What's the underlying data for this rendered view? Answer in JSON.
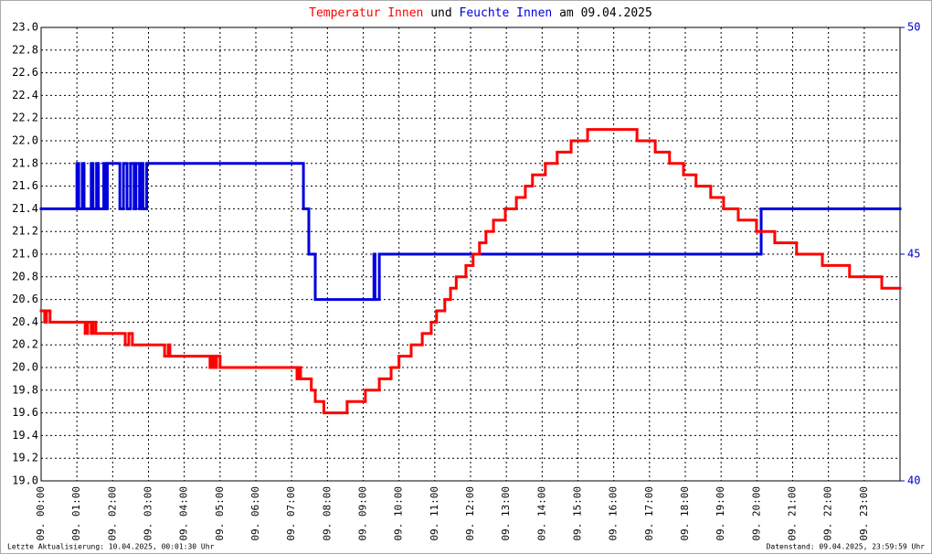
{
  "chart_data": {
    "type": "step-line",
    "title_joiner": "und",
    "title_suffix": "am 09.04.2025",
    "footer_left": "Letzte Aktualisierung: 10.04.2025, 00:01:30 Uhr",
    "footer_right": "Datenstand: 09.04.2025, 23:59:59 Uhr",
    "grid": true,
    "xlim": [
      0,
      24
    ],
    "xticks": [
      {
        "value": 0,
        "label": "09. 00:00"
      },
      {
        "value": 1,
        "label": "09. 01:00"
      },
      {
        "value": 2,
        "label": "09. 02:00"
      },
      {
        "value": 3,
        "label": "09. 03:00"
      },
      {
        "value": 4,
        "label": "09. 04:00"
      },
      {
        "value": 5,
        "label": "09. 05:00"
      },
      {
        "value": 6,
        "label": "09. 06:00"
      },
      {
        "value": 7,
        "label": "09. 07:00"
      },
      {
        "value": 8,
        "label": "09. 08:00"
      },
      {
        "value": 9,
        "label": "09. 09:00"
      },
      {
        "value": 10,
        "label": "09. 10:00"
      },
      {
        "value": 11,
        "label": "09. 11:00"
      },
      {
        "value": 12,
        "label": "09. 12:00"
      },
      {
        "value": 13,
        "label": "09. 13:00"
      },
      {
        "value": 14,
        "label": "09. 14:00"
      },
      {
        "value": 15,
        "label": "09. 15:00"
      },
      {
        "value": 16,
        "label": "09. 16:00"
      },
      {
        "value": 17,
        "label": "09. 17:00"
      },
      {
        "value": 18,
        "label": "09. 18:00"
      },
      {
        "value": 19,
        "label": "09. 19:00"
      },
      {
        "value": 20,
        "label": "09. 20:00"
      },
      {
        "value": 21,
        "label": "09. 21:00"
      },
      {
        "value": 22,
        "label": "09. 22:00"
      },
      {
        "value": 23,
        "label": "09. 23:00"
      }
    ],
    "ylim": [
      19,
      23
    ],
    "yticks": [
      {
        "value": 19,
        "label": "19.0"
      },
      {
        "value": 19.2,
        "label": "19.2"
      },
      {
        "value": 19.4,
        "label": "19.4"
      },
      {
        "value": 19.6,
        "label": "19.6"
      },
      {
        "value": 19.8,
        "label": "19.8"
      },
      {
        "value": 20,
        "label": "20.0"
      },
      {
        "value": 20.2,
        "label": "20.2"
      },
      {
        "value": 20.4,
        "label": "20.4"
      },
      {
        "value": 20.6,
        "label": "20.6"
      },
      {
        "value": 20.8,
        "label": "20.8"
      },
      {
        "value": 21,
        "label": "21.0"
      },
      {
        "value": 21.2,
        "label": "21.2"
      },
      {
        "value": 21.4,
        "label": "21.4"
      },
      {
        "value": 21.6,
        "label": "21.6"
      },
      {
        "value": 21.8,
        "label": "21.8"
      },
      {
        "value": 22,
        "label": "22.0"
      },
      {
        "value": 22.2,
        "label": "22.2"
      },
      {
        "value": 22.4,
        "label": "22.4"
      },
      {
        "value": 22.6,
        "label": "22.6"
      },
      {
        "value": 22.8,
        "label": "22.8"
      },
      {
        "value": 23,
        "label": "23.0"
      }
    ],
    "y2lim": [
      40,
      50
    ],
    "y2ticks": [
      40,
      45,
      50
    ],
    "y2color": "#0000cc",
    "series": [
      {
        "name": "Temperatur Innen",
        "color": "#ff0000",
        "x": [
          0,
          0.1,
          0.15,
          0.25,
          1.23,
          1.3,
          1.4,
          1.45,
          1.53,
          2.35,
          2.45,
          2.55,
          3.45,
          3.55,
          3.6,
          4.72,
          4.78,
          4.85,
          4.9,
          5.0,
          7.15,
          7.2,
          7.25,
          7.55,
          7.66,
          7.9,
          8.55,
          9.06,
          9.45,
          9.78,
          10.0,
          10.34,
          10.65,
          10.9,
          11.05,
          11.28,
          11.44,
          11.6,
          11.87,
          12.07,
          12.25,
          12.43,
          12.64,
          12.97,
          13.28,
          13.53,
          13.73,
          14.09,
          14.42,
          14.81,
          15.27,
          16.65,
          17.16,
          17.56,
          17.95,
          18.3,
          18.71,
          19.07,
          19.48,
          19.99,
          20.5,
          21.11,
          21.83,
          22.59,
          23.49,
          24
        ],
        "values": [
          20.5,
          20.4,
          20.5,
          20.4,
          20.3,
          20.4,
          20.3,
          20.4,
          20.3,
          20.2,
          20.3,
          20.2,
          20.1,
          20.2,
          20.1,
          20.0,
          20.1,
          20.0,
          20.1,
          20.0,
          19.9,
          20.0,
          19.9,
          19.8,
          19.7,
          19.6,
          19.7,
          19.8,
          19.9,
          20.0,
          20.1,
          20.2,
          20.3,
          20.4,
          20.5,
          20.6,
          20.7,
          20.8,
          20.9,
          21.0,
          21.1,
          21.2,
          21.3,
          21.4,
          21.5,
          21.6,
          21.7,
          21.8,
          21.9,
          22.0,
          22.1,
          22.0,
          21.9,
          21.8,
          21.7,
          21.6,
          21.5,
          21.4,
          21.3,
          21.2,
          21.1,
          21.0,
          20.9,
          20.8,
          20.7,
          20.7
        ]
      },
      {
        "name": "Feuchte Innen",
        "color": "#0000dd",
        "axis": "y2",
        "x": [
          0,
          1.0,
          1.05,
          1.15,
          1.2,
          1.4,
          1.45,
          1.55,
          1.6,
          1.75,
          1.8,
          1.85,
          2.2,
          2.3,
          2.4,
          2.5,
          2.6,
          2.65,
          2.75,
          2.8,
          2.85,
          2.95,
          7.33,
          7.48,
          7.66,
          9.3,
          9.33,
          9.45,
          20.12,
          24
        ],
        "values": [
          46,
          47,
          46,
          47,
          46,
          47,
          46,
          47,
          46,
          47,
          46,
          47,
          46,
          47,
          46,
          47,
          46,
          47,
          46,
          47,
          46,
          47,
          46,
          45,
          44,
          45,
          44,
          45,
          46,
          46
        ]
      }
    ]
  }
}
